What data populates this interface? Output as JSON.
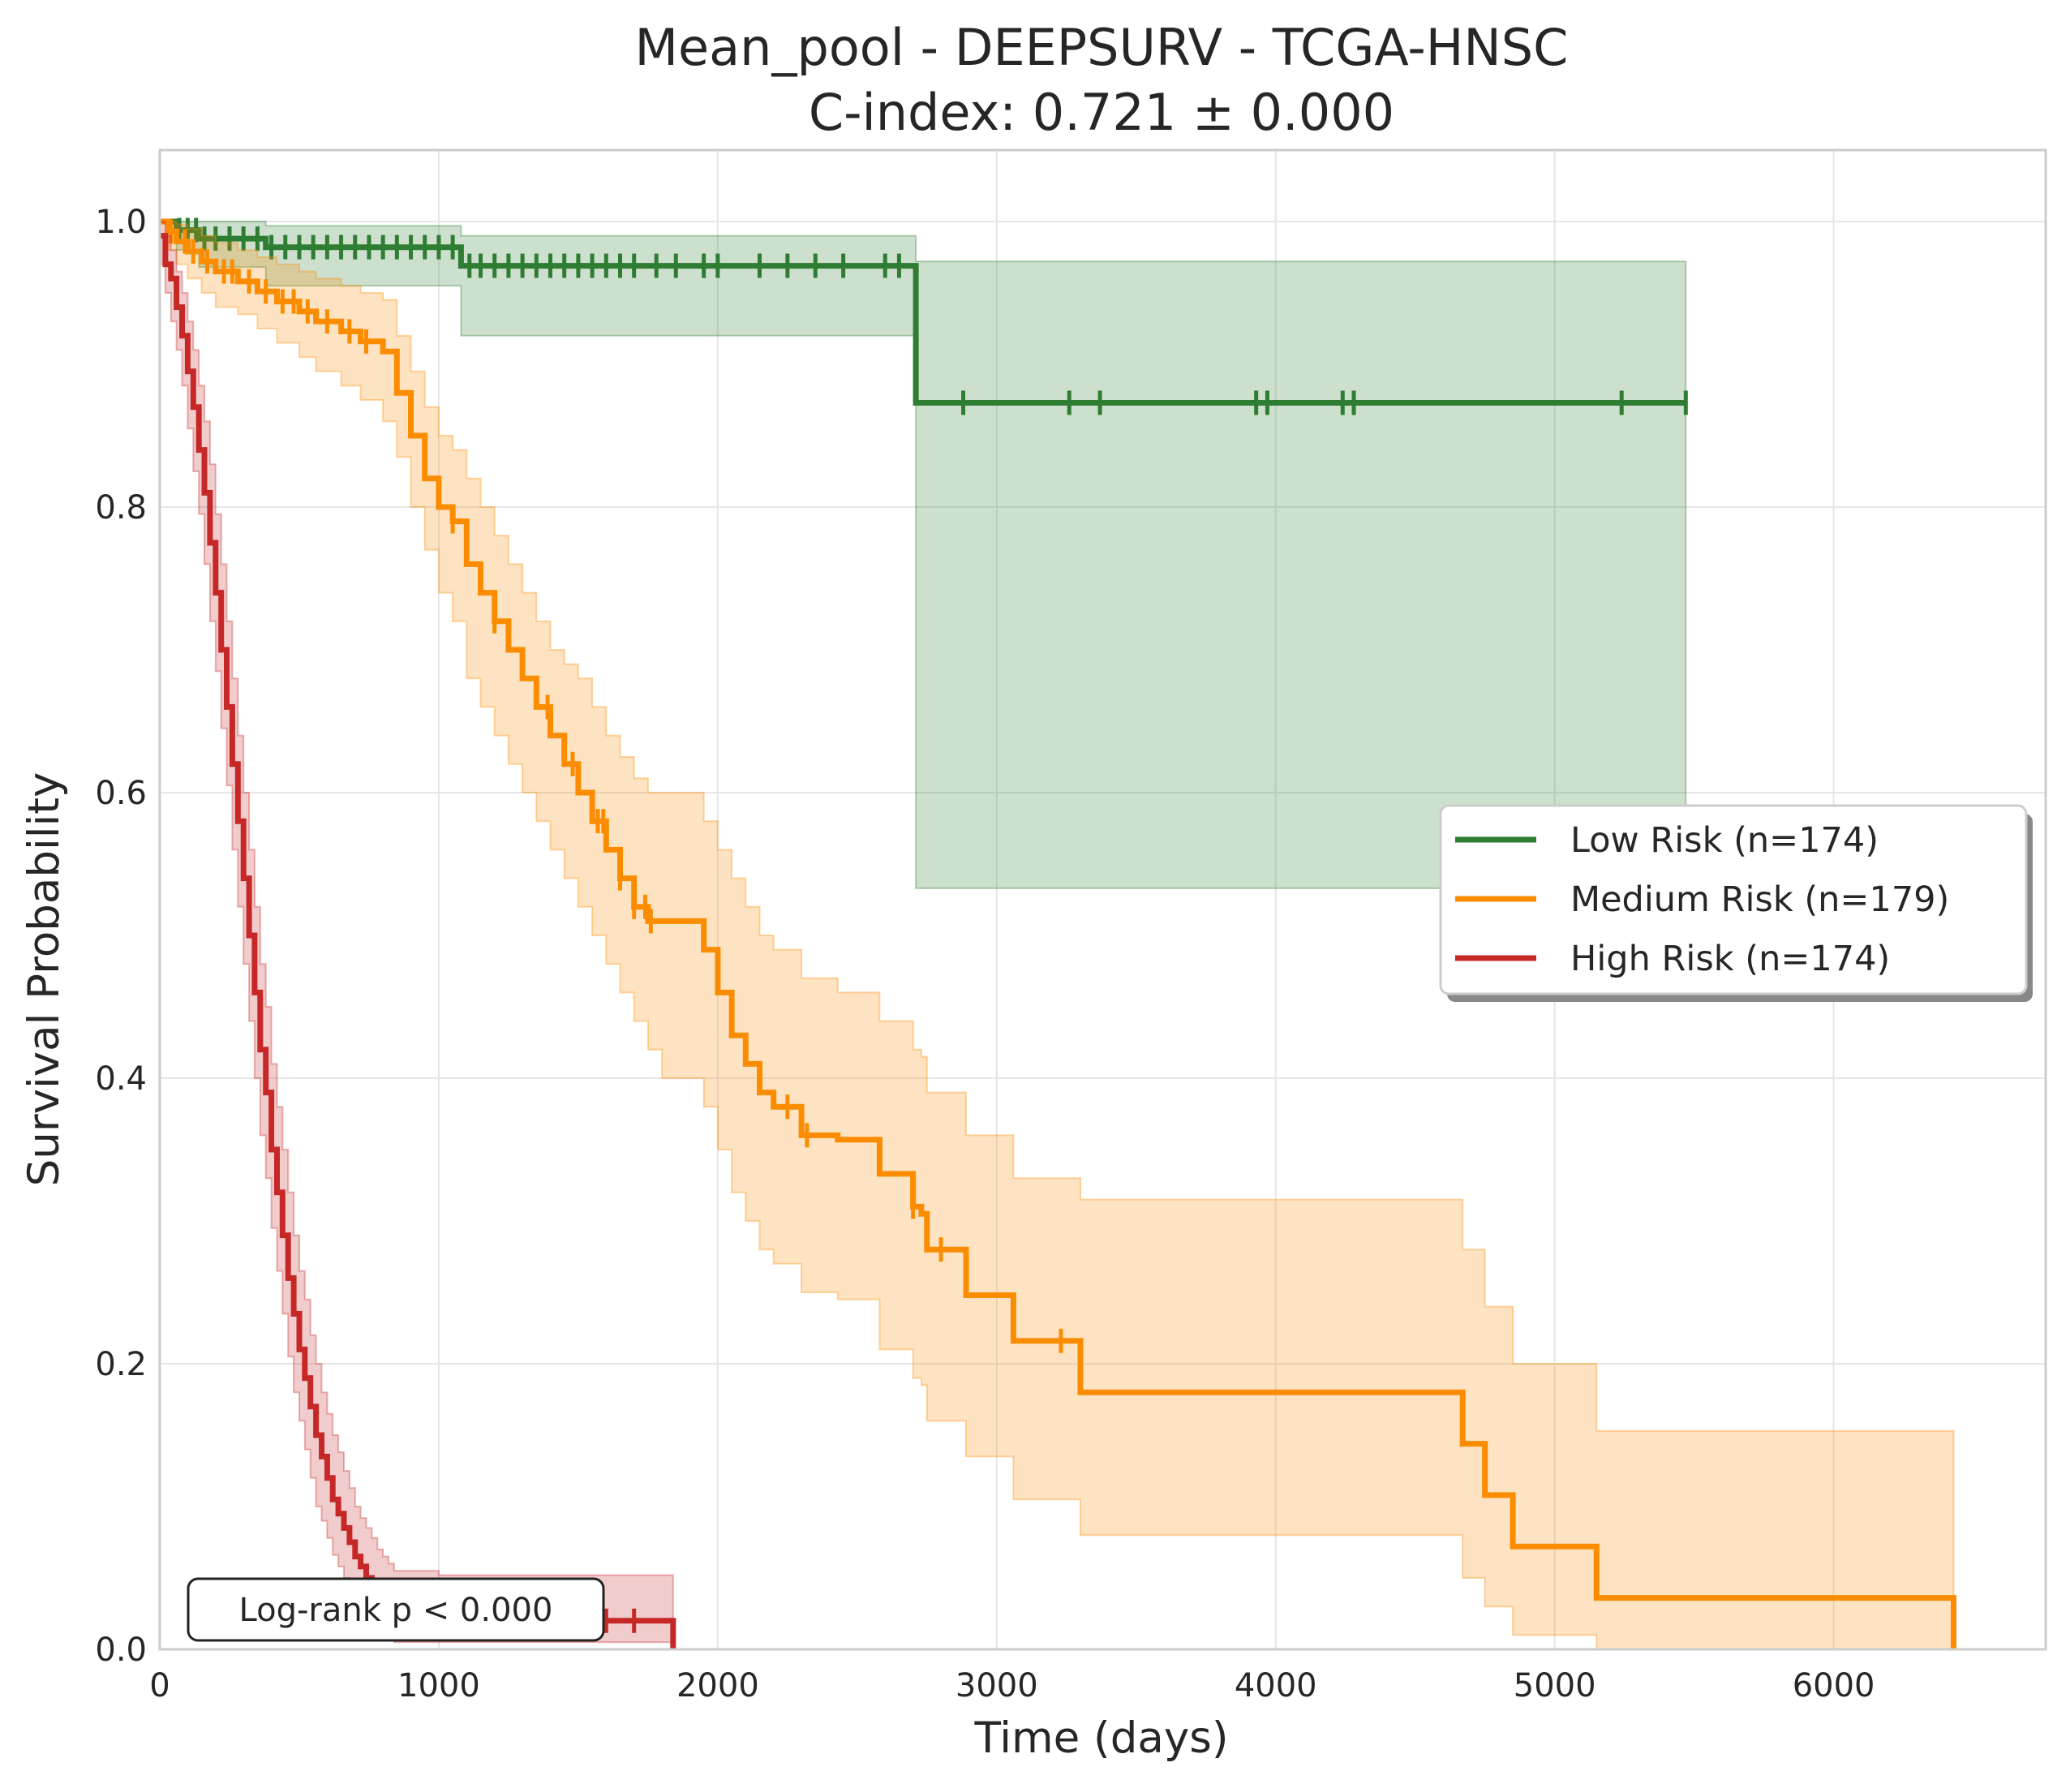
{
  "chart_data": {
    "type": "line",
    "subtype": "kaplan-meier",
    "title": "Mean_pool - DEEPSURV - TCGA-HNSC",
    "subtitle": "C-index: 0.721 ± 0.000",
    "xlabel": "Time (days)",
    "ylabel": "Survival Probability",
    "xlim": [
      0,
      6760
    ],
    "ylim": [
      0,
      1.05
    ],
    "xticks": [
      0,
      1000,
      2000,
      3000,
      4000,
      5000,
      6000
    ],
    "yticks": [
      0.0,
      0.2,
      0.4,
      0.6,
      0.8,
      1.0
    ],
    "xtick_labels": [
      "0",
      "1000",
      "2000",
      "3000",
      "4000",
      "5000",
      "6000"
    ],
    "ytick_labels": [
      "0.0",
      "0.2",
      "0.4",
      "0.6",
      "0.8",
      "1.0"
    ],
    "grid": true,
    "legend_position": "center-right",
    "annotation": "Log-rank p < 0.000",
    "series": [
      {
        "name": "Low Risk (n=174)",
        "color": "#2e7d32",
        "x": [
          0,
          60,
          140,
          380,
          1080,
          2710,
          5470
        ],
        "y": [
          1.0,
          0.994,
          0.988,
          0.982,
          0.969,
          0.873,
          0.873
        ],
        "ci_lower": [
          1.0,
          0.98,
          0.968,
          0.955,
          0.92,
          0.533,
          0.533
        ],
        "ci_upper": [
          1.0,
          1.0,
          1.0,
          0.997,
          0.99,
          0.972,
          0.972
        ],
        "censor_x": [
          70,
          100,
          130,
          160,
          200,
          250,
          300,
          350,
          400,
          450,
          500,
          550,
          600,
          650,
          700,
          750,
          800,
          850,
          900,
          950,
          1000,
          1050,
          1110,
          1150,
          1200,
          1250,
          1300,
          1350,
          1400,
          1450,
          1500,
          1550,
          1600,
          1650,
          1700,
          1780,
          1850,
          1950,
          2000,
          2150,
          2250,
          2350,
          2450,
          2600,
          2650,
          2880,
          3260,
          3370,
          3930,
          3970,
          4240,
          4280,
          5240,
          5470
        ]
      },
      {
        "name": "Medium Risk (n=179)",
        "color": "#fb8c00",
        "x": [
          0,
          30,
          60,
          100,
          150,
          200,
          280,
          350,
          420,
          500,
          560,
          650,
          720,
          800,
          850,
          900,
          950,
          1000,
          1050,
          1100,
          1150,
          1200,
          1250,
          1300,
          1350,
          1400,
          1450,
          1500,
          1550,
          1600,
          1650,
          1700,
          1750,
          1800,
          1950,
          2000,
          2050,
          2100,
          2150,
          2200,
          2300,
          2430,
          2580,
          2700,
          2730,
          2750,
          2890,
          3060,
          3300,
          4670,
          4750,
          4850,
          5150,
          6430
        ],
        "y": [
          1.0,
          0.993,
          0.986,
          0.979,
          0.972,
          0.965,
          0.958,
          0.951,
          0.944,
          0.937,
          0.93,
          0.923,
          0.916,
          0.909,
          0.88,
          0.85,
          0.82,
          0.8,
          0.79,
          0.76,
          0.74,
          0.72,
          0.7,
          0.68,
          0.66,
          0.64,
          0.62,
          0.6,
          0.58,
          0.56,
          0.54,
          0.52,
          0.51,
          0.51,
          0.49,
          0.46,
          0.43,
          0.41,
          0.39,
          0.38,
          0.36,
          0.357,
          0.333,
          0.31,
          0.305,
          0.28,
          0.248,
          0.216,
          0.18,
          0.144,
          0.108,
          0.072,
          0.036,
          0.0
        ],
        "ci_lower": [
          1.0,
          0.98,
          0.97,
          0.96,
          0.95,
          0.94,
          0.935,
          0.925,
          0.915,
          0.905,
          0.895,
          0.885,
          0.875,
          0.86,
          0.835,
          0.8,
          0.77,
          0.74,
          0.72,
          0.68,
          0.66,
          0.64,
          0.62,
          0.6,
          0.58,
          0.56,
          0.54,
          0.52,
          0.5,
          0.48,
          0.46,
          0.44,
          0.42,
          0.4,
          0.38,
          0.35,
          0.32,
          0.3,
          0.28,
          0.27,
          0.25,
          0.245,
          0.21,
          0.19,
          0.185,
          0.16,
          0.135,
          0.105,
          0.08,
          0.05,
          0.03,
          0.01,
          0.0,
          0.0
        ],
        "ci_upper": [
          1.0,
          1.0,
          0.998,
          0.995,
          0.99,
          0.985,
          0.98,
          0.975,
          0.97,
          0.965,
          0.96,
          0.955,
          0.95,
          0.945,
          0.92,
          0.895,
          0.87,
          0.85,
          0.84,
          0.82,
          0.8,
          0.78,
          0.76,
          0.74,
          0.72,
          0.7,
          0.69,
          0.68,
          0.66,
          0.64,
          0.625,
          0.61,
          0.6,
          0.6,
          0.58,
          0.56,
          0.54,
          0.52,
          0.5,
          0.49,
          0.47,
          0.46,
          0.44,
          0.42,
          0.415,
          0.39,
          0.36,
          0.33,
          0.315,
          0.28,
          0.24,
          0.2,
          0.153,
          0.153
        ],
        "censor_x": [
          40,
          90,
          120,
          170,
          230,
          260,
          320,
          380,
          440,
          480,
          530,
          600,
          680,
          740,
          1050,
          1200,
          1390,
          1480,
          1570,
          1590,
          1650,
          1700,
          1740,
          1760,
          2250,
          2320,
          2700,
          2800,
          3230
        ]
      },
      {
        "name": "High Risk (n=174)",
        "color": "#c62828",
        "x": [
          0,
          20,
          40,
          60,
          80,
          100,
          120,
          140,
          160,
          180,
          200,
          220,
          240,
          260,
          280,
          300,
          320,
          340,
          360,
          380,
          400,
          420,
          440,
          460,
          480,
          500,
          520,
          540,
          560,
          580,
          600,
          620,
          640,
          660,
          680,
          700,
          720,
          740,
          760,
          780,
          800,
          820,
          840,
          860,
          1000,
          1530,
          1840
        ],
        "y": [
          0.99,
          0.97,
          0.96,
          0.94,
          0.92,
          0.895,
          0.87,
          0.84,
          0.81,
          0.775,
          0.74,
          0.7,
          0.66,
          0.62,
          0.58,
          0.54,
          0.5,
          0.46,
          0.42,
          0.39,
          0.35,
          0.32,
          0.29,
          0.26,
          0.235,
          0.21,
          0.19,
          0.17,
          0.15,
          0.135,
          0.12,
          0.105,
          0.095,
          0.085,
          0.075,
          0.065,
          0.058,
          0.05,
          0.043,
          0.036,
          0.03,
          0.025,
          0.02,
          0.02,
          0.02,
          0.02,
          0.0
        ],
        "ci_lower": [
          0.97,
          0.95,
          0.93,
          0.91,
          0.885,
          0.855,
          0.825,
          0.795,
          0.76,
          0.72,
          0.685,
          0.645,
          0.605,
          0.56,
          0.52,
          0.48,
          0.44,
          0.4,
          0.36,
          0.33,
          0.295,
          0.265,
          0.235,
          0.205,
          0.18,
          0.16,
          0.14,
          0.12,
          0.1,
          0.09,
          0.078,
          0.066,
          0.058,
          0.05,
          0.043,
          0.036,
          0.03,
          0.025,
          0.02,
          0.015,
          0.012,
          0.008,
          0.005,
          0.005,
          0.005,
          0.005,
          0.0
        ],
        "ci_upper": [
          1.0,
          0.99,
          0.98,
          0.965,
          0.95,
          0.93,
          0.91,
          0.885,
          0.86,
          0.83,
          0.795,
          0.76,
          0.72,
          0.68,
          0.64,
          0.6,
          0.56,
          0.52,
          0.48,
          0.45,
          0.41,
          0.38,
          0.35,
          0.32,
          0.29,
          0.265,
          0.245,
          0.22,
          0.2,
          0.18,
          0.165,
          0.15,
          0.138,
          0.125,
          0.113,
          0.1,
          0.092,
          0.085,
          0.078,
          0.07,
          0.065,
          0.06,
          0.055,
          0.055,
          0.052,
          0.052,
          0.0
        ],
        "censor_x": [
          1000,
          1100,
          1250,
          1400,
          1530,
          1600,
          1700
        ]
      }
    ]
  }
}
